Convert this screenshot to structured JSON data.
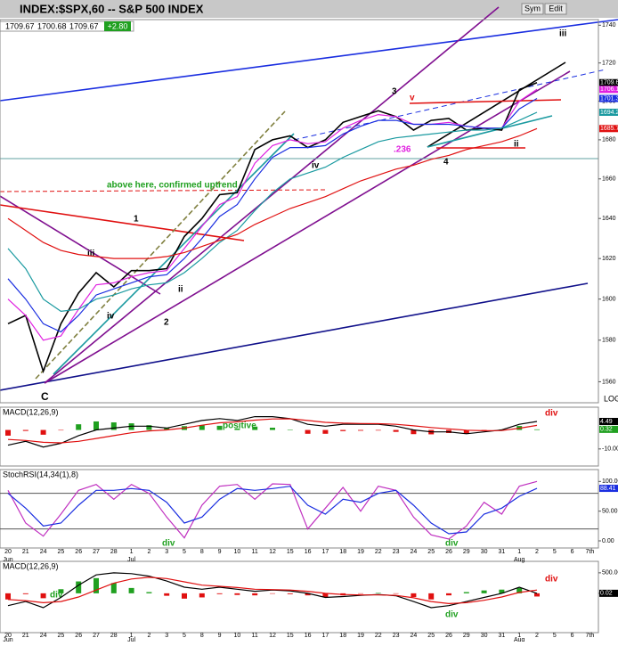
{
  "header": {
    "title": "INDEX:$SPX,60 -- S&P 500 INDEX",
    "quote": [
      "1709.67",
      "1700.68",
      "1709.67"
    ],
    "change": "+2.80",
    "buttons": [
      "Sym",
      "Edit"
    ]
  },
  "annotations": [
    "3",
    "v",
    "iii",
    "ii",
    "4",
    "iv",
    ".236",
    "above here, confirmed uptrend",
    "1",
    "2",
    "iii",
    "iv",
    "ii",
    "C",
    "LOG",
    "positive",
    "div",
    "div",
    "div",
    "div",
    "div",
    "div"
  ],
  "chart_data": [
    {
      "type": "line",
      "log_scale": true,
      "grid": false,
      "categories": [
        "20",
        "21",
        "24",
        "25",
        "26",
        "27",
        "28",
        "1",
        "2",
        "3",
        "5",
        "8",
        "9",
        "10",
        "11",
        "12",
        "15",
        "16",
        "17",
        "18",
        "19",
        "22",
        "23",
        "24",
        "25",
        "26",
        "29",
        "30",
        "31",
        "1",
        "2",
        "5",
        "6",
        "7th"
      ],
      "month_ticks": [
        {
          "value": 0,
          "label": "Jun"
        },
        {
          "value": 7,
          "label": "Jul"
        },
        {
          "value": 29,
          "label": "Aug"
        }
      ],
      "ylim": [
        1550,
        1743
      ],
      "yticks": [
        1560,
        1580,
        1600,
        1620,
        1640,
        1660,
        1680,
        1700,
        1720,
        1740
      ],
      "series": [
        {
          "color": "#000000",
          "last": 1709.67,
          "values": [
            1588,
            1592,
            1565,
            1588,
            1603,
            1613,
            1606,
            1614,
            1614,
            1615,
            1631,
            1640,
            1652,
            1653,
            1675,
            1680,
            1682,
            1676,
            1680,
            1689,
            1692,
            1695,
            1692,
            1685,
            1690,
            1691,
            1685,
            1686,
            1685,
            1706,
            1709.67,
            null,
            null,
            null
          ]
        },
        {
          "color": "#e020e0",
          "last": 1706.13,
          "values": [
            1600,
            1592,
            1580,
            1582,
            1595,
            1607,
            1608,
            1611,
            1613,
            1614,
            1625,
            1636,
            1647,
            1651,
            1668,
            1677,
            1680,
            1678,
            1679,
            1686,
            1690,
            1693,
            1692,
            1688,
            1688,
            1689,
            1687,
            1686,
            1686,
            1700,
            1706.13,
            null,
            null,
            null
          ]
        },
        {
          "color": "#1a2ee0",
          "last": 1701.39,
          "values": [
            1610,
            1600,
            1588,
            1584,
            1592,
            1602,
            1605,
            1608,
            1611,
            1612,
            1620,
            1630,
            1641,
            1647,
            1660,
            1671,
            1676,
            1676,
            1677,
            1683,
            1687,
            1690,
            1690,
            1688,
            1688,
            1688,
            1687,
            1686,
            1686,
            1696,
            1701.39,
            null,
            null,
            null
          ]
        },
        {
          "color": "#1a9aa0",
          "last": 1694.23,
          "values": [
            1625,
            1615,
            1600,
            1594,
            1595,
            1600,
            1602,
            1605,
            1607,
            1608,
            1613,
            1620,
            1628,
            1634,
            1644,
            1653,
            1660,
            1663,
            1666,
            1671,
            1675,
            1679,
            1681,
            1682,
            1683,
            1684,
            1685,
            1685,
            1686,
            1690,
            1694.23,
            null,
            null,
            null
          ]
        },
        {
          "color": "#e01010",
          "last": 1685.79,
          "values": [
            1640,
            1634,
            1628,
            1624,
            1622,
            1621,
            1620,
            1620,
            1620,
            1621,
            1623,
            1626,
            1629,
            1632,
            1637,
            1641,
            1645,
            1648,
            1651,
            1655,
            1659,
            1662,
            1665,
            1667,
            1670,
            1672,
            1675,
            1677,
            1679,
            1682,
            1685.79,
            null,
            null,
            null
          ]
        }
      ]
    },
    {
      "type": "macd",
      "title": "MACD(12,26,9)",
      "ylim": [
        -19,
        12
      ],
      "yticks": [
        {
          "value": -10,
          "label": "-10.00"
        }
      ],
      "series": [
        {
          "color": "#000000",
          "last": 4.49,
          "values": [
            -8,
            -6,
            -9,
            -7,
            -3,
            0,
            1,
            2,
            2,
            1,
            3,
            5,
            6,
            5,
            7,
            7,
            6,
            3,
            2,
            3,
            3,
            3,
            2,
            0,
            -1,
            -1,
            -2,
            -1,
            0,
            3,
            4.49,
            null,
            null,
            null
          ]
        },
        {
          "color": "#e01010",
          "values": [
            -5,
            -5.5,
            -6.5,
            -6.8,
            -6,
            -4.5,
            -3,
            -1.5,
            -0.5,
            0,
            1,
            2.5,
            3.8,
            4.3,
            5.2,
            5.8,
            5.9,
            5,
            4,
            3.6,
            3.4,
            3.3,
            3,
            2.2,
            1.3,
            0.6,
            -0.1,
            -0.4,
            -0.3,
            0.9,
            2.4,
            null,
            null,
            null
          ]
        }
      ],
      "histogram": {
        "up_color": "#20a020",
        "down_color": "#e01010",
        "last": 0.32,
        "values": [
          -3,
          -0.5,
          -2.5,
          -0.2,
          3,
          4.5,
          4,
          3.5,
          2.5,
          1,
          2,
          2.5,
          2.2,
          0.7,
          1.8,
          1.2,
          0.1,
          -2,
          -2,
          -0.6,
          -0.4,
          -0.3,
          -1,
          -2.2,
          -2.3,
          -1.6,
          -1.9,
          -0.6,
          0.3,
          2.1,
          0.32,
          null,
          null,
          null
        ]
      }
    },
    {
      "type": "line",
      "title": "StochRSI(14,34(1),8)",
      "ylim": [
        -12,
        120
      ],
      "yticks": [
        {
          "value": 0,
          "label": "0.00"
        },
        {
          "value": 50,
          "label": "50.00"
        },
        {
          "value": 100,
          "label": "100.00"
        }
      ],
      "hlines": [
        20,
        80
      ],
      "series": [
        {
          "color": "#c030c0",
          "values": [
            85,
            30,
            8,
            45,
            85,
            95,
            70,
            95,
            80,
            40,
            5,
            60,
            92,
            95,
            70,
            96,
            95,
            20,
            55,
            90,
            50,
            92,
            85,
            40,
            10,
            3,
            25,
            65,
            45,
            92,
            100,
            null,
            null,
            null
          ]
        },
        {
          "color": "#1a2ee0",
          "last": 88.41,
          "values": [
            80,
            55,
            25,
            30,
            60,
            85,
            85,
            88,
            85,
            65,
            30,
            40,
            70,
            88,
            85,
            88,
            92,
            60,
            45,
            70,
            65,
            80,
            85,
            60,
            30,
            12,
            15,
            45,
            55,
            75,
            88.41,
            null,
            null,
            null
          ]
        }
      ]
    },
    {
      "type": "macd",
      "title": "MACD(12,26,9)",
      "ylim": [
        -960,
        780
      ],
      "yticks": [
        {
          "value": 500,
          "label": "500.00"
        },
        {
          "value": 0,
          "label": "0.00"
        }
      ],
      "series": [
        {
          "color": "#000000",
          "last": 0.02,
          "values": [
            -300,
            -200,
            -350,
            -100,
            200,
            450,
            500,
            480,
            420,
            300,
            150,
            100,
            150,
            100,
            50,
            80,
            60,
            0,
            -100,
            -80,
            -50,
            -30,
            -60,
            -200,
            -350,
            -300,
            -200,
            -100,
            0,
            150,
            0.02,
            null,
            null,
            null
          ]
        },
        {
          "color": "#e01010",
          "values": [
            -150,
            -180,
            -230,
            -200,
            -90,
            80,
            250,
            350,
            390,
            360,
            280,
            200,
            170,
            140,
            100,
            90,
            80,
            50,
            0,
            -30,
            -40,
            -40,
            -50,
            -110,
            -200,
            -250,
            -230,
            -170,
            -90,
            20,
            80,
            null,
            null,
            null
          ]
        }
      ],
      "histogram": {
        "up_color": "#20a020",
        "down_color": "#e01010",
        "values": [
          -150,
          -20,
          -120,
          100,
          290,
          370,
          250,
          130,
          30,
          -60,
          -130,
          -100,
          -20,
          -40,
          -50,
          -10,
          -20,
          -50,
          -100,
          -50,
          -10,
          10,
          -10,
          -90,
          -150,
          -50,
          30,
          70,
          90,
          130,
          -78,
          null,
          null,
          null
        ]
      }
    }
  ]
}
